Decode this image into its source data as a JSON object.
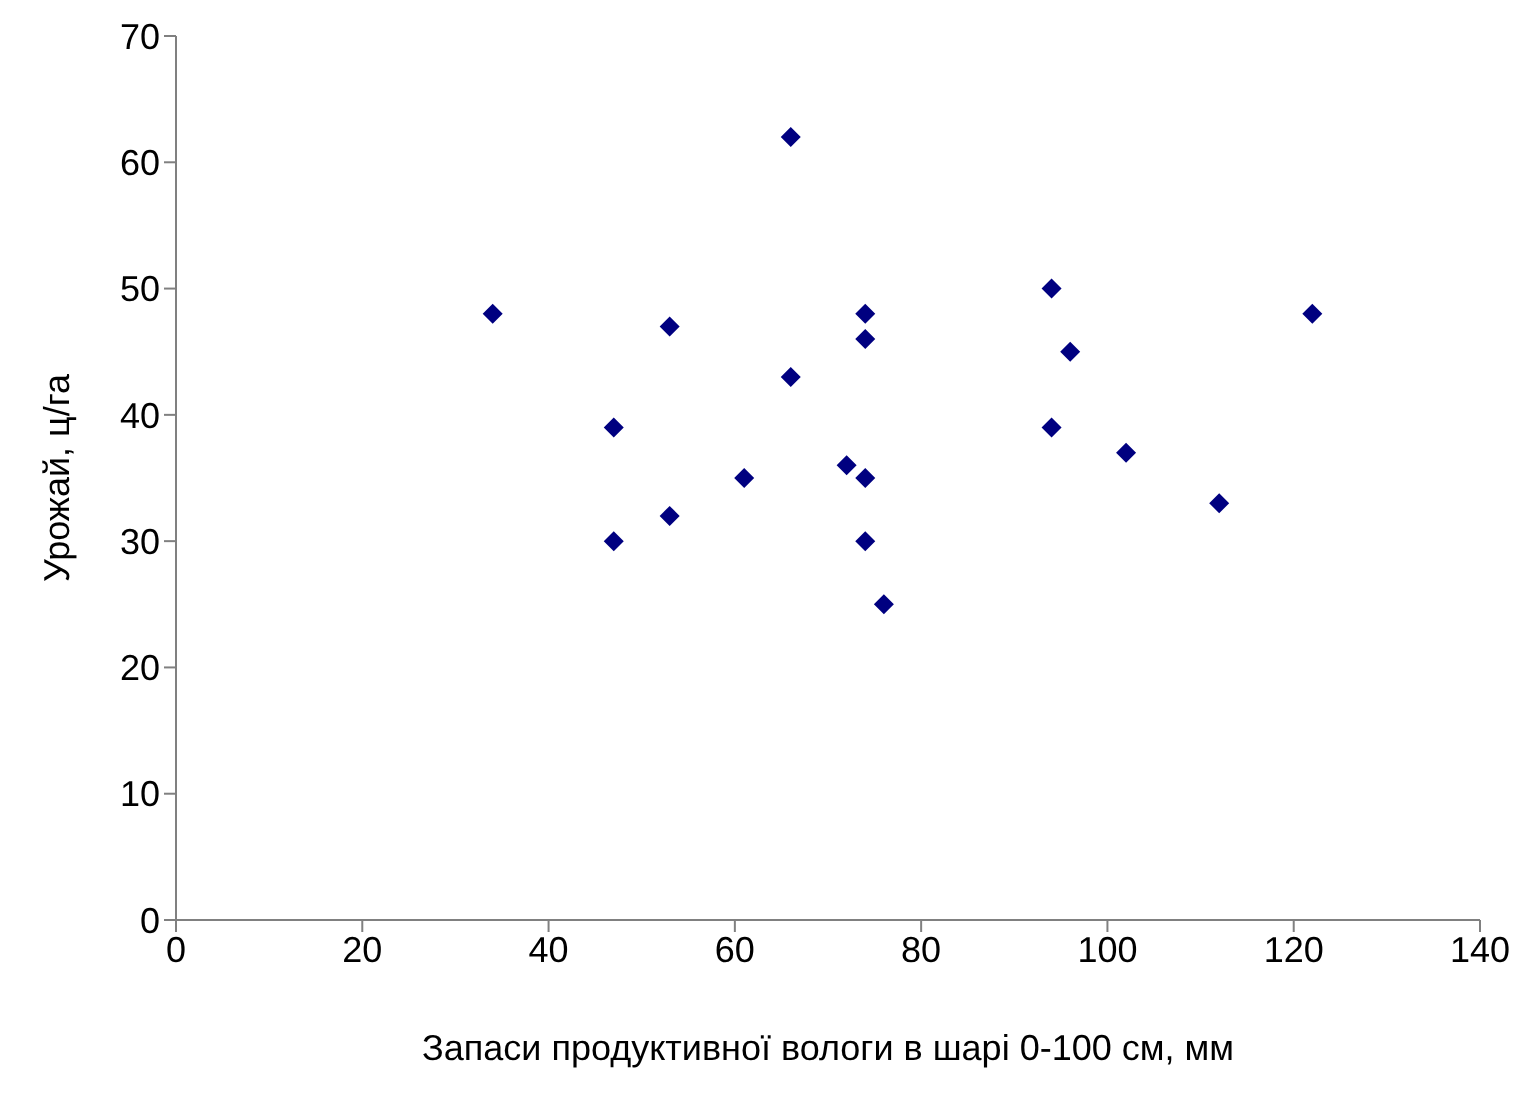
{
  "chart_data": {
    "type": "scatter",
    "xlabel": "Запаси продуктивної вологи в шарі 0-100 см, мм",
    "ylabel": "Урожай, ц/га",
    "x": [
      34,
      47,
      47,
      53,
      53,
      61,
      66,
      66,
      72,
      74,
      74,
      74,
      74,
      76,
      94,
      94,
      96,
      102,
      112,
      122
    ],
    "values": [
      48,
      39,
      30,
      47,
      32,
      35,
      62,
      43,
      36,
      48,
      46,
      35,
      30,
      25,
      50,
      39,
      45,
      37,
      33,
      48
    ],
    "color": "#000080",
    "marker": "diamond",
    "grid": false,
    "legend": false,
    "xlim": [
      0,
      140
    ],
    "xticks": [
      0,
      20,
      40,
      60,
      80,
      100,
      120,
      140
    ],
    "ylim": [
      0,
      70
    ],
    "yticks": [
      0,
      10,
      20,
      30,
      40,
      50,
      60,
      70
    ]
  }
}
